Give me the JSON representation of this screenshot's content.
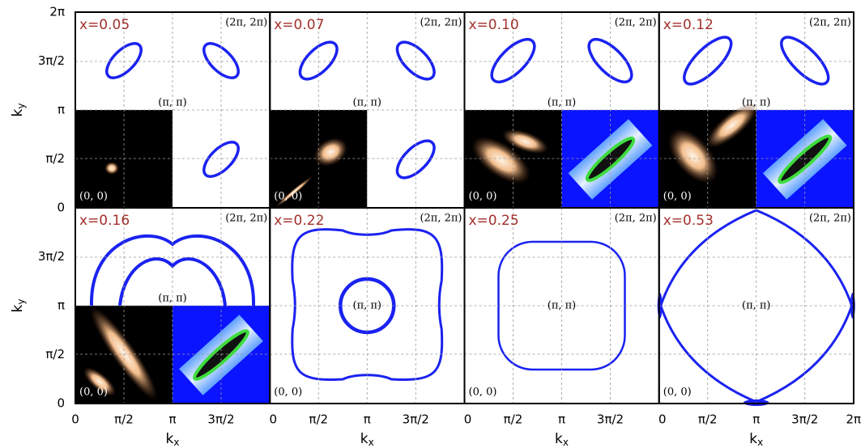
{
  "panels": [
    {
      "label": "x=0.05",
      "corner": "(2π, 2π)",
      "center": "(π, π)",
      "origin": "(0, 0)"
    },
    {
      "label": "x=0.07",
      "corner": "(2π, 2π)",
      "center": "(π, π)",
      "origin": "(0, 0)"
    },
    {
      "label": "x=0.10",
      "corner": "(2π, 2π)",
      "center": "(π, π)",
      "origin": "(0, 0)"
    },
    {
      "label": "x=0.12",
      "corner": "(2π, 2π)",
      "center": "(π, π)",
      "origin": "(0, 0)"
    },
    {
      "label": "x=0.16",
      "corner": "(2π, 2π)",
      "center": "(π, π)",
      "origin": "(0, 0)"
    },
    {
      "label": "x=0.22",
      "corner": "(2π, 2π)",
      "center": "(π, π)",
      "origin": "(0, 0)"
    },
    {
      "label": "x=0.25",
      "corner": "(2π, 2π)",
      "center": "(π, π)",
      "origin": "(0, 0)"
    },
    {
      "label": "x=0.53",
      "corner": "(2π, 2π)",
      "center": "(π, π)",
      "origin": "(0, 0)"
    }
  ],
  "y_axis": {
    "label": "k",
    "subscript": "y",
    "ticks": [
      "2π",
      "3π/2",
      "π",
      "π/2",
      "0"
    ]
  },
  "x_axis": {
    "label": "k",
    "subscript": "x",
    "ticks": [
      "0",
      "π/2",
      "π",
      "3π/2",
      "2π"
    ]
  }
}
